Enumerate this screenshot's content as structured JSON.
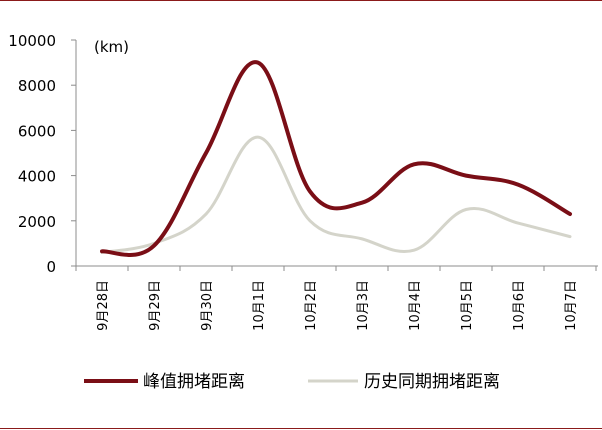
{
  "chart_data": {
    "type": "line",
    "unit": "(km)",
    "ylim": [
      0,
      10000
    ],
    "yticks": [
      0,
      2000,
      4000,
      6000,
      8000,
      10000
    ],
    "categories": [
      "9月28日",
      "9月29日",
      "9月30日",
      "10月1日",
      "10月2日",
      "10月3日",
      "10月4日",
      "10月5日",
      "10月6日",
      "10月7日"
    ],
    "series": [
      {
        "name": "峰值拥堵距离",
        "color": "#7a0e16",
        "values": [
          650,
          900,
          5000,
          9000,
          3300,
          2800,
          4500,
          4000,
          3600,
          2300
        ]
      },
      {
        "name": "历史同期拥堵距离",
        "color": "#d4d4ca",
        "values": [
          600,
          1000,
          2300,
          5700,
          2000,
          1200,
          700,
          2500,
          1900,
          1300
        ]
      }
    ],
    "grid": false,
    "legend": "bottom"
  }
}
